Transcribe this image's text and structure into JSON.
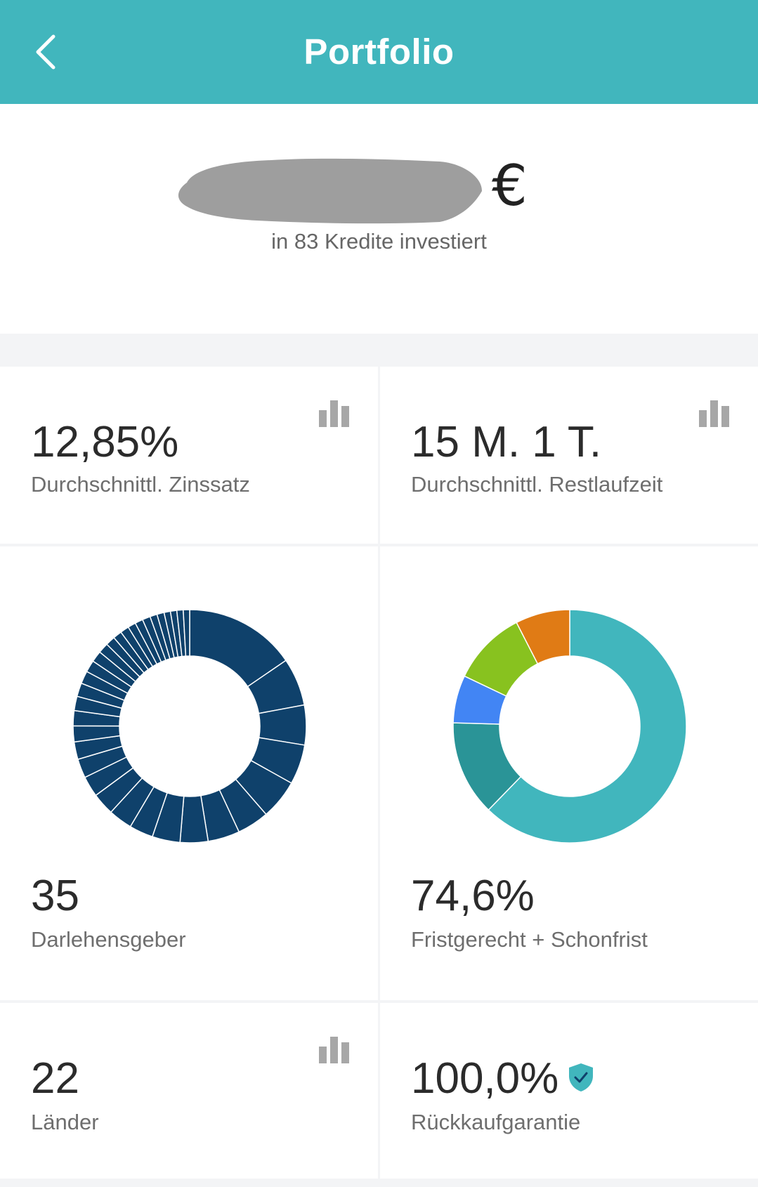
{
  "header": {
    "title": "Portfolio",
    "background_color": "#41b6bd"
  },
  "summary": {
    "currency": "€",
    "subtitle": "in 83 Kredite investiert"
  },
  "stats": {
    "interest_value": "12,85%",
    "interest_label": "Durchschnittl. Zinssatz",
    "term_value": "15 M. 1 T.",
    "term_label": "Durchschnittl. Restlaufzeit",
    "lenders_value": "35",
    "lenders_label": "Darlehensgeber",
    "status_value": "74,6%",
    "status_label": "Fristgerecht + Schonfrist",
    "countries_value": "22",
    "countries_label": "Länder",
    "guarantee_value": "100,0%",
    "guarantee_label": "Rückkaufgarantie"
  },
  "chart_data": [
    {
      "type": "pie",
      "title": "",
      "color": "#0f416b",
      "values": [
        14,
        6,
        5,
        5,
        5,
        4,
        4,
        3.5,
        3.5,
        3,
        3,
        2.8,
        2.6,
        2.4,
        2.2,
        2,
        1.9,
        1.8,
        1.7,
        1.6,
        1.5,
        1.4,
        1.3,
        1.2,
        1.1,
        1.1,
        1,
        1,
        1,
        0.9,
        0.9,
        0.8,
        0.8,
        0.8,
        0.8
      ]
    },
    {
      "type": "pie",
      "title": "",
      "values": [
        66,
        14,
        7,
        11,
        8
      ],
      "colors": [
        "#41b6bd",
        "#2a9497",
        "#4285f4",
        "#88c21f",
        "#e07b15"
      ]
    }
  ]
}
